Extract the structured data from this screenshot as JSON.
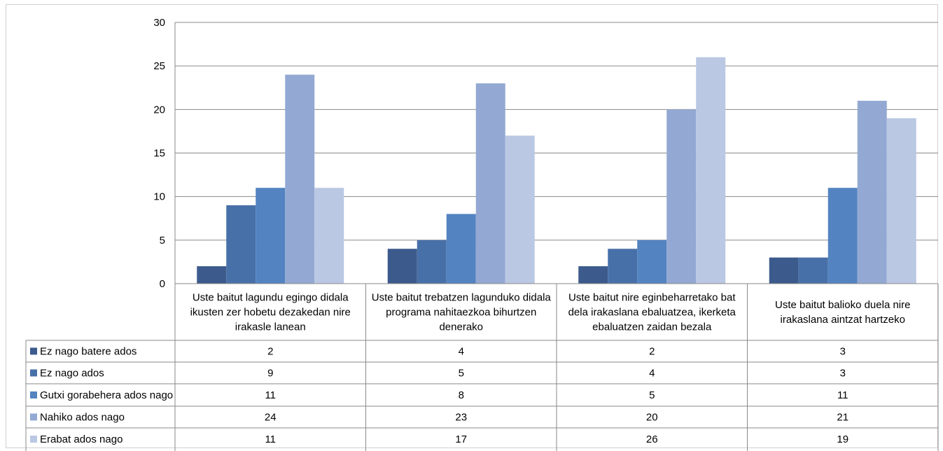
{
  "chart_data": {
    "type": "bar",
    "categories": [
      "Uste baitut lagundu egingo didala ikusten zer hobetu dezakedan nire irakasle lanean",
      "Uste baitut trebatzen lagunduko didala programa nahitaezkoa bihurtzen denerako",
      "Uste baitut nire eginbeharretako bat dela irakaslana ebaluatzea, ikerketa ebaluatzen zaidan bezala",
      "Uste baitut balioko duela nire irakaslana aintzat hartzeko"
    ],
    "category_lines": [
      [
        "Uste baitut lagundu egingo didala",
        "ikusten zer hobetu dezakedan nire",
        "irakasle lanean"
      ],
      [
        "Uste baitut trebatzen lagunduko didala",
        "programa nahitaezkoa bihurtzen",
        "denerako"
      ],
      [
        "Uste baitut nire eginbeharretako bat",
        "dela irakaslana ebaluatzea, ikerketa",
        "ebaluatzen zaidan bezala"
      ],
      [
        "Uste baitut balioko duela nire",
        "irakaslana aintzat hartzeko"
      ]
    ],
    "series": [
      {
        "name": "Ez nago batere ados",
        "values": [
          2,
          4,
          2,
          3
        ],
        "color": "#3c5a8c"
      },
      {
        "name": "Ez nago ados",
        "values": [
          9,
          5,
          4,
          3
        ],
        "color": "#4870a8"
      },
      {
        "name": "Gutxi gorabehera ados nago",
        "values": [
          11,
          8,
          5,
          11
        ],
        "color": "#5383c0"
      },
      {
        "name": "Nahiko ados nago",
        "values": [
          24,
          23,
          20,
          21
        ],
        "color": "#93a9d3"
      },
      {
        "name": "Erabat ados nago",
        "values": [
          11,
          17,
          26,
          19
        ],
        "color": "#bac8e3"
      }
    ],
    "ylim": [
      0,
      30
    ],
    "yticks": [
      0,
      5,
      10,
      15,
      20,
      25,
      30
    ],
    "grid": true,
    "legend": "data-table",
    "title": "",
    "xlabel": "",
    "ylabel": ""
  }
}
